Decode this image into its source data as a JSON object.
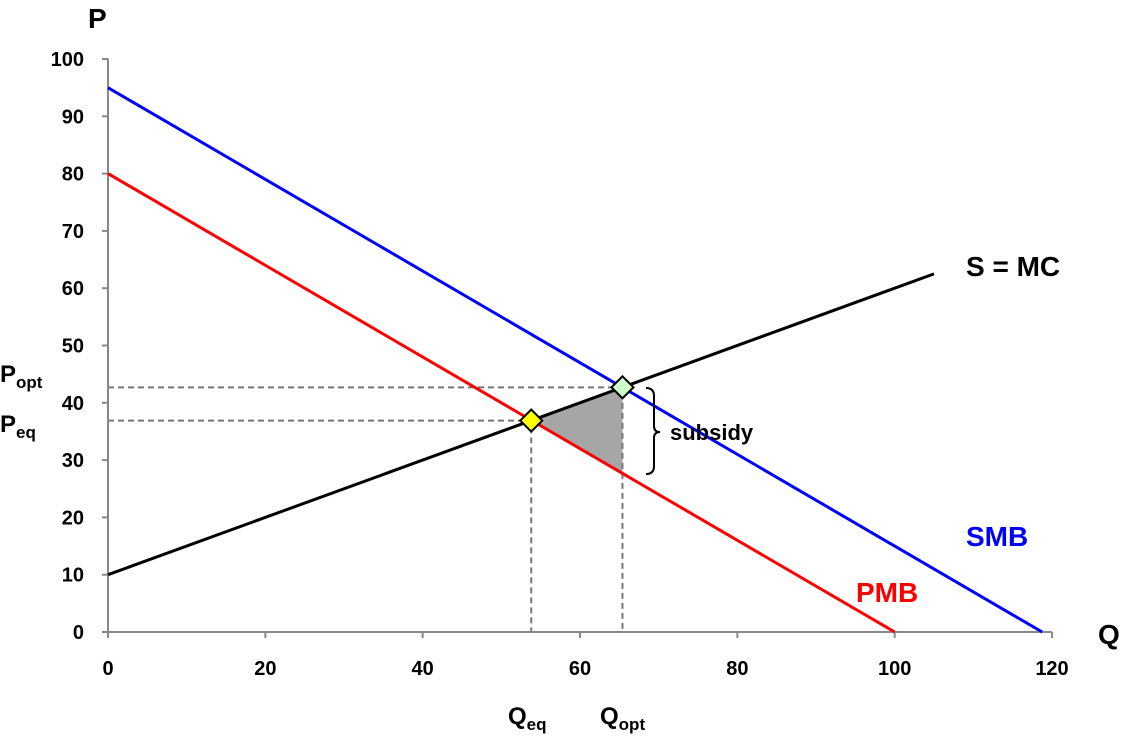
{
  "chart_data": {
    "type": "line",
    "xlabel": "Q",
    "ylabel": "P",
    "xlim": [
      0,
      120
    ],
    "ylim": [
      0,
      100
    ],
    "xticks": [
      0,
      20,
      40,
      60,
      80,
      100,
      120
    ],
    "yticks": [
      0,
      10,
      20,
      30,
      40,
      50,
      60,
      70,
      80,
      90,
      100
    ],
    "grid": false,
    "series": [
      {
        "name": "SMB",
        "color": "#0000ff",
        "x": [
          0,
          118.75
        ],
        "y": [
          95,
          0
        ]
      },
      {
        "name": "PMB",
        "color": "#ff0000",
        "x": [
          0,
          100
        ],
        "y": [
          80,
          0
        ]
      },
      {
        "name": "S = MC",
        "color": "#000000",
        "x": [
          0,
          105
        ],
        "y": [
          10,
          62.5
        ]
      }
    ],
    "points": [
      {
        "label": "equilibrium",
        "x": 53.8,
        "y": 36.9,
        "color": "#ffff00"
      },
      {
        "label": "optimum",
        "x": 65.4,
        "y": 42.7,
        "color": "#ccffcc"
      }
    ],
    "shaded_region": {
      "x": [
        53.8,
        65.4,
        65.4
      ],
      "y": [
        36.9,
        42.7,
        27.7
      ],
      "color": "#a6a6a6"
    },
    "annotations": {
      "p_opt": {
        "main": "P",
        "sub": "opt"
      },
      "p_eq": {
        "main": "P",
        "sub": "eq"
      },
      "q_eq": {
        "main": "Q",
        "sub": "eq"
      },
      "q_opt": {
        "main": "Q",
        "sub": "opt"
      },
      "subsidy": "subsidy"
    }
  }
}
